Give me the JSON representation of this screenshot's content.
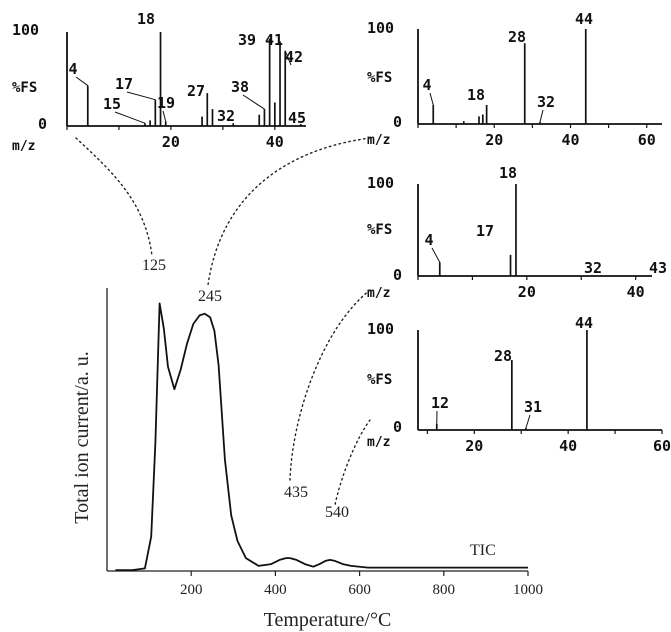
{
  "chart_data": [
    {
      "type": "line",
      "name": "tic",
      "xlabel": "Temperature/°C",
      "ylabel": "Total ion current/a. u.",
      "series_label": "TIC",
      "xlim": [
        0,
        1000
      ],
      "xticks": [
        200,
        400,
        600,
        800,
        1000
      ],
      "x": [
        20,
        60,
        90,
        105,
        115,
        125,
        135,
        145,
        160,
        175,
        190,
        205,
        220,
        232,
        245,
        255,
        265,
        280,
        295,
        310,
        330,
        360,
        390,
        410,
        425,
        435,
        450,
        470,
        490,
        505,
        520,
        530,
        540,
        560,
        580,
        620,
        700,
        800,
        900,
        1000
      ],
      "y": [
        1,
        1,
        3,
        40,
        150,
        312,
        283,
        238,
        212,
        235,
        265,
        288,
        298,
        300,
        296,
        280,
        240,
        130,
        65,
        35,
        15,
        6,
        8,
        13,
        15,
        15,
        13,
        8,
        5,
        8,
        12,
        13,
        12,
        8,
        6,
        4,
        4,
        4,
        4,
        4
      ],
      "ylim": [
        0,
        330
      ],
      "annotations": [
        {
          "text": "125",
          "x": 125
        },
        {
          "text": "245",
          "x": 245
        },
        {
          "text": "435",
          "x": 435
        },
        {
          "text": "540",
          "x": 540
        }
      ]
    },
    {
      "type": "bar",
      "name": "ms125",
      "peak_temperature": 125,
      "xlabel": "m/z",
      "ylabel": "%FS",
      "ylim": [
        0,
        100
      ],
      "xlim": [
        0,
        46
      ],
      "xticks": [
        20,
        40
      ],
      "yticks": [
        "100",
        "0"
      ],
      "x": [
        4,
        15,
        16,
        17,
        18,
        19,
        26,
        27,
        28,
        32,
        37,
        38,
        39,
        40,
        41,
        42,
        45
      ],
      "values": [
        43,
        3,
        6,
        28,
        100,
        5,
        10,
        35,
        18,
        3,
        12,
        18,
        93,
        25,
        90,
        80,
        2
      ],
      "labels": [
        "4",
        "15",
        "17",
        "18",
        "19",
        "27",
        "32",
        "38",
        "39",
        "41",
        "42",
        "45"
      ]
    },
    {
      "type": "bar",
      "name": "ms245",
      "peak_temperature": 245,
      "xlabel": "m/z",
      "ylabel": "%FS",
      "ylim": [
        0,
        100
      ],
      "xlim": [
        0,
        64
      ],
      "xticks": [
        20,
        40,
        60
      ],
      "yticks": [
        "100",
        "0"
      ],
      "x": [
        4,
        12,
        16,
        17,
        18,
        28,
        32,
        44
      ],
      "values": [
        20,
        3,
        8,
        10,
        20,
        85,
        2,
        100
      ],
      "labels": [
        "4",
        "18",
        "28",
        "32",
        "44"
      ]
    },
    {
      "type": "bar",
      "name": "ms435",
      "peak_temperature": 435,
      "xlabel": "m/z",
      "ylabel": "%FS",
      "ylim": [
        0,
        100
      ],
      "xlim": [
        0,
        43
      ],
      "xticks": [
        20,
        40
      ],
      "yticks": [
        "100",
        "0"
      ],
      "x": [
        4,
        17,
        18,
        32
      ],
      "values": [
        15,
        23,
        100,
        1
      ],
      "labels": [
        "4",
        "17",
        "18",
        "32",
        "43"
      ]
    },
    {
      "type": "bar",
      "name": "ms540",
      "peak_temperature": 540,
      "xlabel": "m/z",
      "ylabel": "%FS",
      "ylim": [
        0,
        100
      ],
      "xlim": [
        8,
        60
      ],
      "xticks": [
        20,
        40,
        60
      ],
      "yticks": [
        "100",
        "0"
      ],
      "x": [
        12,
        28,
        31,
        44
      ],
      "values": [
        6,
        70,
        2,
        100
      ],
      "labels": [
        "12",
        "28",
        "31",
        "44"
      ]
    }
  ]
}
